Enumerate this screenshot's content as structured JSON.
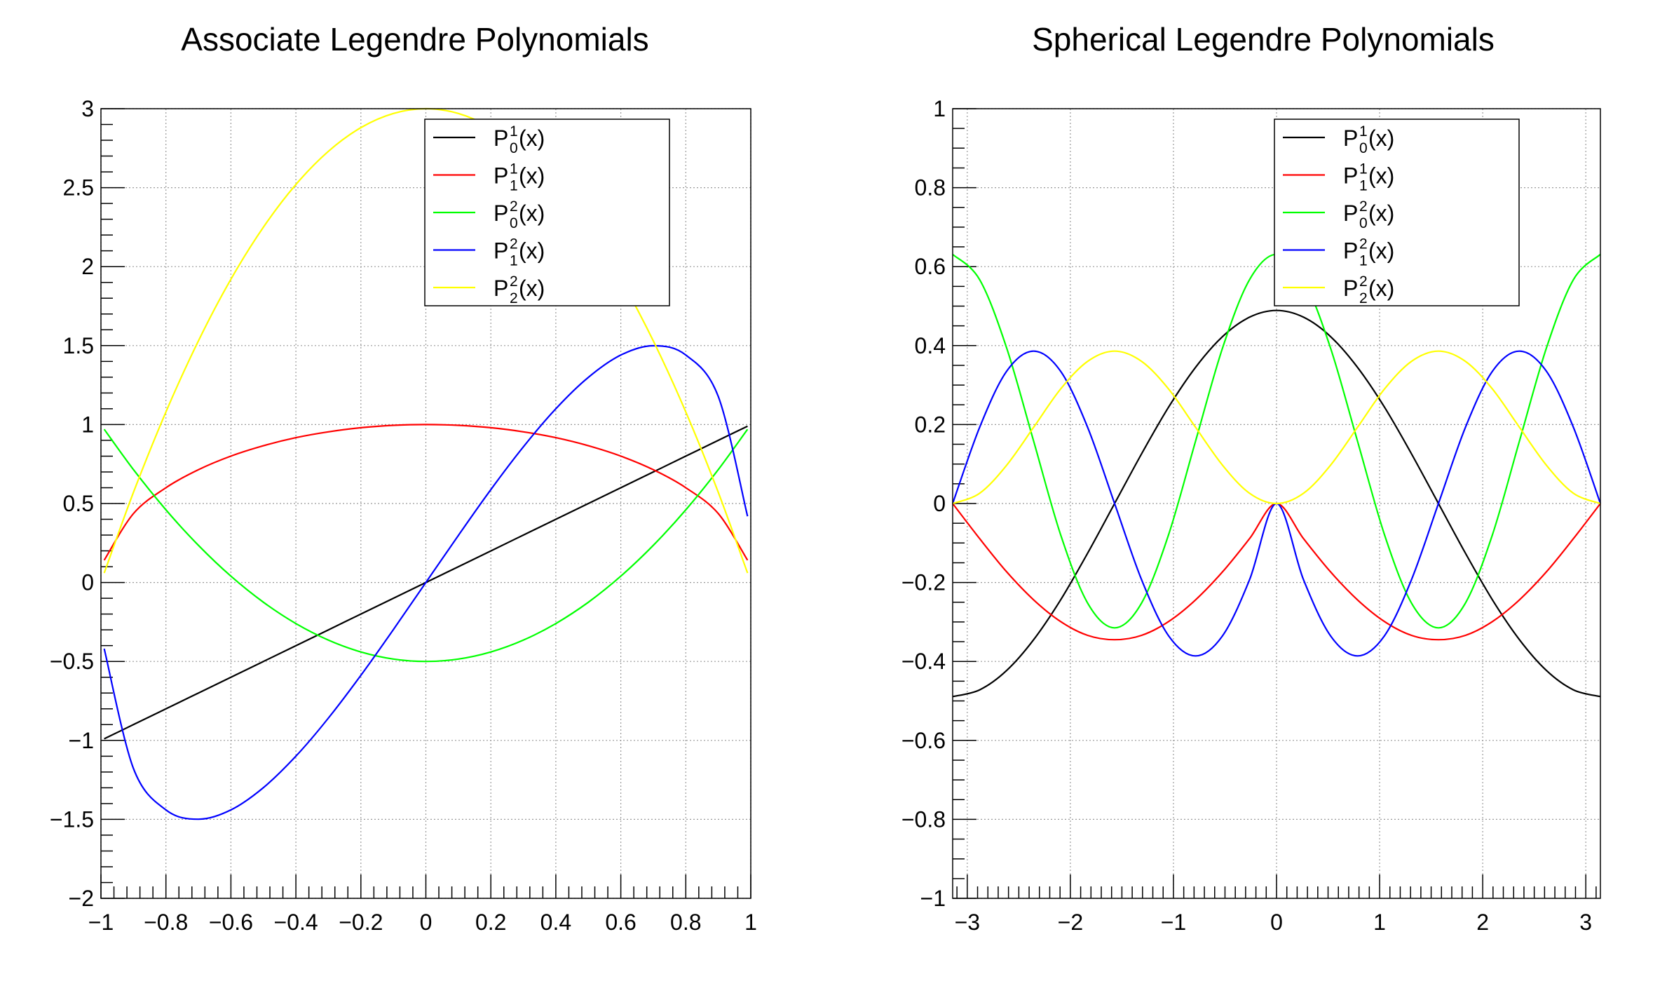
{
  "chart_data": [
    {
      "type": "line",
      "title": "Associate Legendre Polynomials",
      "xlim": [
        -1,
        1
      ],
      "ylim": [
        -2,
        3
      ],
      "grid": true,
      "legend_position": "top-right",
      "xticks": [
        -1,
        -0.8,
        -0.6,
        -0.4,
        -0.2,
        0,
        0.2,
        0.4,
        0.6,
        0.8,
        1
      ],
      "xtick_labels": [
        "−1",
        "−0.8",
        "−0.6",
        "−0.4",
        "−0.2",
        "0",
        "0.2",
        "0.4",
        "0.6",
        "0.8",
        "1"
      ],
      "yticks": [
        -2,
        -1.5,
        -1,
        -0.5,
        0,
        0.5,
        1,
        1.5,
        2,
        2.5,
        3
      ],
      "ytick_labels": [
        "−2",
        "−1.5",
        "−1",
        "−0.5",
        "0",
        "0.5",
        "1",
        "1.5",
        "2",
        "2.5",
        "3"
      ],
      "x": [
        -0.99,
        -0.9,
        -0.8,
        -0.7,
        -0.6,
        -0.5,
        -0.4,
        -0.3,
        -0.2,
        -0.1,
        0,
        0.1,
        0.2,
        0.3,
        0.4,
        0.5,
        0.6,
        0.7,
        0.8,
        0.9,
        0.99
      ],
      "series": [
        {
          "legend": {
            "base": "P",
            "sup": "1",
            "sub": "0",
            "arg": "(x)"
          },
          "color": "#000000",
          "values": [
            -0.99,
            -0.9,
            -0.8,
            -0.7,
            -0.6,
            -0.5,
            -0.4,
            -0.3,
            -0.2,
            -0.1,
            0,
            0.1,
            0.2,
            0.3,
            0.4,
            0.5,
            0.6,
            0.7,
            0.8,
            0.9,
            0.99
          ]
        },
        {
          "legend": {
            "base": "P",
            "sup": "1",
            "sub": "1",
            "arg": "(x)"
          },
          "color": "#ff0000",
          "values": [
            0.141,
            0.436,
            0.6,
            0.714,
            0.8,
            0.866,
            0.917,
            0.954,
            0.98,
            0.995,
            1,
            0.995,
            0.98,
            0.954,
            0.917,
            0.866,
            0.8,
            0.714,
            0.6,
            0.436,
            0.141
          ]
        },
        {
          "legend": {
            "base": "P",
            "sup": "2",
            "sub": "0",
            "arg": "(x)"
          },
          "color": "#00ff00",
          "values": [
            0.97,
            0.715,
            0.46,
            0.235,
            0.04,
            -0.125,
            -0.26,
            -0.365,
            -0.44,
            -0.485,
            -0.5,
            -0.485,
            -0.44,
            -0.365,
            -0.26,
            -0.125,
            0.04,
            0.235,
            0.46,
            0.715,
            0.97
          ]
        },
        {
          "legend": {
            "base": "P",
            "sup": "2",
            "sub": "1",
            "arg": "(x)"
          },
          "color": "#0000ff",
          "values": [
            -0.419,
            -1.177,
            -1.44,
            -1.499,
            -1.44,
            -1.299,
            -1.1,
            -0.859,
            -0.588,
            -0.298,
            0,
            0.298,
            0.588,
            0.859,
            1.1,
            1.299,
            1.44,
            1.499,
            1.44,
            1.177,
            0.419
          ]
        },
        {
          "legend": {
            "base": "P",
            "sup": "2",
            "sub": "2",
            "arg": "(x)"
          },
          "color": "#ffff00",
          "values": [
            0.06,
            0.57,
            1.08,
            1.53,
            1.92,
            2.25,
            2.52,
            2.73,
            2.88,
            2.97,
            3,
            2.97,
            2.88,
            2.73,
            2.52,
            2.25,
            1.92,
            1.53,
            1.08,
            0.57,
            0.06
          ]
        }
      ]
    },
    {
      "type": "line",
      "title": "Spherical Legendre Polynomials",
      "xlim": [
        -3.1416,
        3.1416
      ],
      "ylim": [
        -1,
        1
      ],
      "grid": true,
      "legend_position": "top-right",
      "xticks": [
        -3,
        -2,
        -1,
        0,
        1,
        2,
        3
      ],
      "xtick_labels": [
        "−3",
        "−2",
        "−1",
        "0",
        "1",
        "2",
        "3"
      ],
      "yticks": [
        -1,
        -0.8,
        -0.6,
        -0.4,
        -0.2,
        0,
        0.2,
        0.4,
        0.6,
        0.8,
        1
      ],
      "ytick_labels": [
        "−1",
        "−0.8",
        "−0.6",
        "−0.4",
        "−0.2",
        "0",
        "0.2",
        "0.4",
        "0.6",
        "0.8",
        "1"
      ],
      "x": [
        -3.1416,
        -2.8798,
        -2.618,
        -2.3562,
        -2.0944,
        -1.8326,
        -1.5708,
        -1.309,
        -1.0472,
        -0.7854,
        -0.5236,
        -0.2618,
        0,
        0.2618,
        0.5236,
        0.7854,
        1.0472,
        1.309,
        1.5708,
        1.8326,
        2.0944,
        2.3562,
        2.618,
        2.8798,
        3.1416
      ],
      "series": [
        {
          "legend": {
            "base": "P",
            "sup": "1",
            "sub": "0",
            "arg": "(x)"
          },
          "color": "#000000",
          "values": [
            -0.489,
            -0.472,
            -0.423,
            -0.345,
            -0.244,
            -0.126,
            0,
            0.126,
            0.244,
            0.345,
            0.423,
            0.472,
            0.489,
            0.472,
            0.423,
            0.345,
            0.244,
            0.126,
            0,
            -0.126,
            -0.244,
            -0.345,
            -0.423,
            -0.472,
            -0.489
          ]
        },
        {
          "legend": {
            "base": "P",
            "sup": "1",
            "sub": "1",
            "arg": "(x)"
          },
          "color": "#ff0000",
          "values": [
            0,
            -0.089,
            -0.173,
            -0.244,
            -0.299,
            -0.334,
            -0.345,
            -0.334,
            -0.299,
            -0.244,
            -0.173,
            -0.089,
            0,
            -0.089,
            -0.173,
            -0.244,
            -0.299,
            -0.334,
            -0.345,
            -0.334,
            -0.299,
            -0.244,
            -0.173,
            -0.089,
            0
          ]
        },
        {
          "legend": {
            "base": "P",
            "sup": "2",
            "sub": "0",
            "arg": "(x)"
          },
          "color": "#00ff00",
          "values": [
            0.631,
            0.567,
            0.394,
            0.158,
            -0.079,
            -0.252,
            -0.315,
            -0.252,
            -0.079,
            0.158,
            0.394,
            0.567,
            0.631,
            0.567,
            0.394,
            0.158,
            -0.079,
            -0.252,
            -0.315,
            -0.252,
            -0.079,
            0.158,
            0.394,
            0.567,
            0.631
          ]
        },
        {
          "legend": {
            "base": "P",
            "sup": "2",
            "sub": "1",
            "arg": "(x)"
          },
          "color": "#0000ff",
          "values": [
            0,
            0.193,
            0.335,
            0.386,
            0.335,
            0.193,
            0,
            -0.193,
            -0.335,
            -0.386,
            -0.335,
            -0.193,
            0,
            -0.193,
            -0.335,
            -0.386,
            -0.335,
            -0.193,
            0,
            0.193,
            0.335,
            0.386,
            0.335,
            0.193,
            0
          ]
        },
        {
          "legend": {
            "base": "P",
            "sup": "2",
            "sub": "2",
            "arg": "(x)"
          },
          "color": "#ffff00",
          "values": [
            0,
            0.026,
            0.097,
            0.193,
            0.29,
            0.36,
            0.386,
            0.36,
            0.29,
            0.193,
            0.097,
            0.026,
            0,
            0.026,
            0.097,
            0.193,
            0.29,
            0.36,
            0.386,
            0.36,
            0.29,
            0.193,
            0.097,
            0.026,
            0
          ]
        }
      ]
    }
  ]
}
